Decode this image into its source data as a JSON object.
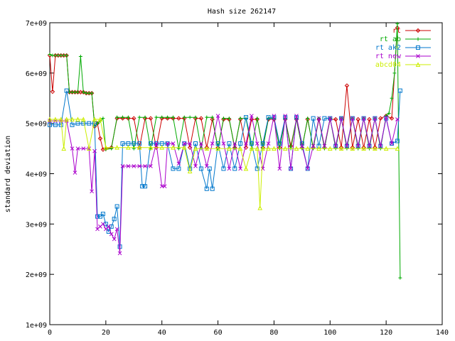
{
  "chart_data": {
    "type": "line",
    "title": "Hash size 262147",
    "xlabel": "",
    "ylabel": "standard deviation",
    "xlim": [
      0,
      140
    ],
    "ylim": [
      1000000000,
      7000000000
    ],
    "xticks": [
      0,
      20,
      40,
      60,
      80,
      100,
      120,
      140
    ],
    "xtick_labels": [
      "0",
      "20",
      "40",
      "60",
      "80",
      "100",
      "120",
      "140"
    ],
    "yticks": [
      1000000000,
      2000000000,
      3000000000,
      4000000000,
      5000000000,
      6000000000,
      7000000000
    ],
    "ytick_labels": [
      "1e+09",
      "2e+09",
      "3e+09",
      "4e+09",
      "5e+09",
      "6e+09",
      "7e+09"
    ],
    "grid": false,
    "legend": "top-right",
    "series": [
      {
        "name": "rt",
        "color": "#cc0000",
        "marker": "diamond",
        "x": [
          0,
          1,
          2,
          3,
          4,
          5,
          6,
          7,
          8,
          9,
          10,
          11,
          12,
          13,
          14,
          15,
          16,
          17,
          18,
          19,
          20,
          22,
          24,
          26,
          28,
          30,
          32,
          34,
          36,
          38,
          40,
          42,
          44,
          46,
          48,
          50,
          52,
          54,
          56,
          58,
          60,
          62,
          64,
          66,
          68,
          70,
          72,
          74,
          76,
          78,
          80,
          82,
          84,
          86,
          88,
          90,
          92,
          94,
          96,
          98,
          100,
          102,
          104,
          106,
          108,
          110,
          112,
          114,
          116,
          118,
          120,
          122,
          124
        ],
        "y": [
          6350000000.0,
          5630000000.0,
          6350000000.0,
          6350000000.0,
          6350000000.0,
          6350000000.0,
          6350000000.0,
          5620000000.0,
          5620000000.0,
          5620000000.0,
          5620000000.0,
          5620000000.0,
          5620000000.0,
          5600000000.0,
          5600000000.0,
          5600000000.0,
          4940000000.0,
          5000000000.0,
          4700000000.0,
          4480000000.0,
          4500000000.0,
          4520000000.0,
          5100000000.0,
          5100000000.0,
          5100000000.0,
          5100000000.0,
          4520000000.0,
          5100000000.0,
          5100000000.0,
          4520000000.0,
          5100000000.0,
          5100000000.0,
          5100000000.0,
          5100000000.0,
          5100000000.0,
          4520000000.0,
          5100000000.0,
          5100000000.0,
          4520000000.0,
          5080000000.0,
          4520000000.0,
          5080000000.0,
          5080000000.0,
          4520000000.0,
          5080000000.0,
          4520000000.0,
          5080000000.0,
          5080000000.0,
          4520000000.0,
          5080000000.0,
          5080000000.0,
          4520000000.0,
          5080000000.0,
          4550000000.0,
          5080000000.0,
          4520000000.0,
          5080000000.0,
          4520000000.0,
          5080000000.0,
          4520000000.0,
          5080000000.0,
          5080000000.0,
          4520000000.0,
          5750000000.0,
          4520000000.0,
          5080000000.0,
          4520000000.0,
          5080000000.0,
          4520000000.0,
          5100000000.0,
          5150000000.0,
          5100000000.0,
          6900000000.0
        ]
      },
      {
        "name": "rt ab",
        "color": "#00aa00",
        "marker": "plus",
        "x": [
          0,
          1,
          2,
          3,
          4,
          5,
          6,
          7,
          8,
          9,
          10,
          11,
          12,
          13,
          14,
          15,
          16,
          17,
          18,
          19,
          20,
          22,
          24,
          26,
          28,
          30,
          32,
          34,
          36,
          38,
          40,
          42,
          44,
          46,
          48,
          50,
          52,
          54,
          56,
          58,
          60,
          62,
          64,
          66,
          68,
          70,
          72,
          74,
          76,
          78,
          80,
          82,
          84,
          86,
          88,
          90,
          92,
          94,
          96,
          98,
          100,
          102,
          104,
          106,
          108,
          110,
          112,
          114,
          116,
          118,
          120,
          121,
          122,
          123,
          124,
          125
        ],
        "y": [
          6370000000.0,
          6350000000.0,
          6350000000.0,
          6350000000.0,
          6350000000.0,
          6350000000.0,
          6350000000.0,
          5620000000.0,
          5620000000.0,
          5620000000.0,
          5620000000.0,
          6330000000.0,
          5620000000.0,
          5600000000.0,
          5600000000.0,
          5600000000.0,
          4950000000.0,
          5000000000.0,
          5050000000.0,
          5100000000.0,
          4480000000.0,
          4500000000.0,
          5120000000.0,
          5120000000.0,
          5120000000.0,
          4500000000.0,
          5120000000.0,
          5120000000.0,
          4500000000.0,
          5120000000.0,
          5120000000.0,
          5120000000.0,
          5120000000.0,
          4500000000.0,
          5120000000.0,
          5120000000.0,
          5120000000.0,
          4500000000.0,
          5120000000.0,
          5120000000.0,
          4500000000.0,
          5100000000.0,
          5100000000.0,
          4500000000.0,
          5100000000.0,
          5100000000.0,
          4500000000.0,
          5100000000.0,
          4500000000.0,
          5100000000.0,
          5100000000.0,
          4500000000.0,
          5100000000.0,
          4500000000.0,
          5100000000.0,
          4500000000.0,
          5100000000.0,
          4500000000.0,
          5100000000.0,
          4500000000.0,
          5100000000.0,
          4500000000.0,
          5100000000.0,
          4500000000.0,
          5100000000.0,
          4500000000.0,
          5100000000.0,
          4500000000.0,
          5100000000.0,
          4500000000.0,
          5150000000.0,
          5200000000.0,
          5500000000.0,
          6000000000.0,
          6980000000.0,
          1930000000.0
        ]
      },
      {
        "name": "rt ak2",
        "color": "#0077cc",
        "marker": "square",
        "x": [
          0,
          2,
          4,
          6,
          8,
          10,
          12,
          14,
          16,
          17,
          18,
          19,
          20,
          21,
          22,
          23,
          24,
          25,
          26,
          28,
          30,
          32,
          33,
          34,
          36,
          38,
          40,
          42,
          44,
          46,
          48,
          50,
          52,
          54,
          56,
          57,
          58,
          60,
          62,
          64,
          66,
          68,
          70,
          72,
          74,
          76,
          78,
          80,
          82,
          84,
          86,
          88,
          90,
          92,
          94,
          96,
          98,
          100,
          102,
          104,
          106,
          108,
          110,
          112,
          114,
          116,
          118,
          120,
          122,
          124,
          125
        ],
        "y": [
          4970000000.0,
          4970000000.0,
          4970000000.0,
          5650000000.0,
          4970000000.0,
          5000000000.0,
          5000000000.0,
          5000000000.0,
          5000000000.0,
          3150000000.0,
          3150000000.0,
          3200000000.0,
          3000000000.0,
          2850000000.0,
          2950000000.0,
          3100000000.0,
          3350000000.0,
          2550000000.0,
          4600000000.0,
          4600000000.0,
          4600000000.0,
          4600000000.0,
          3750000000.0,
          3750000000.0,
          4600000000.0,
          4600000000.0,
          4600000000.0,
          4600000000.0,
          4100000000.0,
          4100000000.0,
          4600000000.0,
          4100000000.0,
          4600000000.0,
          4100000000.0,
          3700000000.0,
          4100000000.0,
          3700000000.0,
          4600000000.0,
          4100000000.0,
          4600000000.0,
          4100000000.0,
          4600000000.0,
          5120000000.0,
          4600000000.0,
          4100000000.0,
          4600000000.0,
          5120000000.0,
          5120000000.0,
          4600000000.0,
          5120000000.0,
          4100000000.0,
          5120000000.0,
          4600000000.0,
          4100000000.0,
          5100000000.0,
          4550000000.0,
          5100000000.0,
          5100000000.0,
          4550000000.0,
          5100000000.0,
          4550000000.0,
          5100000000.0,
          4550000000.0,
          5100000000.0,
          4550000000.0,
          5100000000.0,
          4550000000.0,
          5100000000.0,
          4600000000.0,
          4650000000.0,
          5650000000.0
        ]
      },
      {
        "name": "rt new",
        "color": "#aa00cc",
        "marker": "cross",
        "x": [
          0,
          2,
          4,
          6,
          8,
          9,
          10,
          12,
          14,
          15,
          16,
          17,
          18,
          19,
          20,
          21,
          22,
          23,
          24,
          25,
          26,
          28,
          30,
          32,
          34,
          36,
          38,
          40,
          41,
          42,
          44,
          46,
          48,
          50,
          52,
          54,
          56,
          58,
          60,
          62,
          64,
          66,
          68,
          70,
          72,
          74,
          76,
          78,
          80,
          82,
          84,
          86,
          88,
          90,
          92,
          94,
          96,
          98,
          100,
          102,
          104,
          106,
          108,
          110,
          112,
          114,
          116,
          118,
          120,
          122,
          124
        ],
        "y": [
          5050000000.0,
          5050000000.0,
          5050000000.0,
          5050000000.0,
          4500000000.0,
          4020000000.0,
          4500000000.0,
          4500000000.0,
          4500000000.0,
          3650000000.0,
          4450000000.0,
          2900000000.0,
          2950000000.0,
          3000000000.0,
          2900000000.0,
          2950000000.0,
          2800000000.0,
          2700000000.0,
          2900000000.0,
          2420000000.0,
          4150000000.0,
          4150000000.0,
          4150000000.0,
          4150000000.0,
          4150000000.0,
          4150000000.0,
          4600000000.0,
          3750000000.0,
          3750000000.0,
          4600000000.0,
          4600000000.0,
          4200000000.0,
          4600000000.0,
          4600000000.0,
          4150000000.0,
          4600000000.0,
          4150000000.0,
          4600000000.0,
          5150000000.0,
          4600000000.0,
          4100000000.0,
          4600000000.0,
          4100000000.0,
          4600000000.0,
          5150000000.0,
          4600000000.0,
          4100000000.0,
          4600000000.0,
          5150000000.0,
          4100000000.0,
          5150000000.0,
          4100000000.0,
          5150000000.0,
          4550000000.0,
          4100000000.0,
          4550000000.0,
          5100000000.0,
          4550000000.0,
          5100000000.0,
          4550000000.0,
          5100000000.0,
          4550000000.0,
          5100000000.0,
          4550000000.0,
          5100000000.0,
          4550000000.0,
          5100000000.0,
          4550000000.0,
          5120000000.0,
          4600000000.0,
          5080000000.0
        ]
      },
      {
        "name": "abcd04",
        "color": "#ccee00",
        "marker": "triangle",
        "x": [
          0,
          2,
          4,
          5,
          6,
          8,
          10,
          12,
          14,
          16,
          18,
          20,
          24,
          28,
          32,
          36,
          40,
          44,
          48,
          50,
          52,
          56,
          60,
          64,
          68,
          70,
          72,
          74,
          75,
          76,
          78,
          80,
          84,
          88,
          92,
          96,
          100,
          104,
          108,
          112,
          116,
          120,
          124
        ],
        "y": [
          5080000000.0,
          5080000000.0,
          5080000000.0,
          4500000000.0,
          5080000000.0,
          5080000000.0,
          5080000000.0,
          5080000000.0,
          4500000000.0,
          5080000000.0,
          5080000000.0,
          4520000000.0,
          4520000000.0,
          4520000000.0,
          4520000000.0,
          4520000000.0,
          4520000000.0,
          4520000000.0,
          4520000000.0,
          4050000000.0,
          4500000000.0,
          4500000000.0,
          4500000000.0,
          4500000000.0,
          4500000000.0,
          4100000000.0,
          4500000000.0,
          4500000000.0,
          3320000000.0,
          4500000000.0,
          4500000000.0,
          4500000000.0,
          4500000000.0,
          4500000000.0,
          4500000000.0,
          4500000000.0,
          4500000000.0,
          4500000000.0,
          4500000000.0,
          4500000000.0,
          4500000000.0,
          4500000000.0,
          4500000000.0
        ]
      }
    ]
  }
}
